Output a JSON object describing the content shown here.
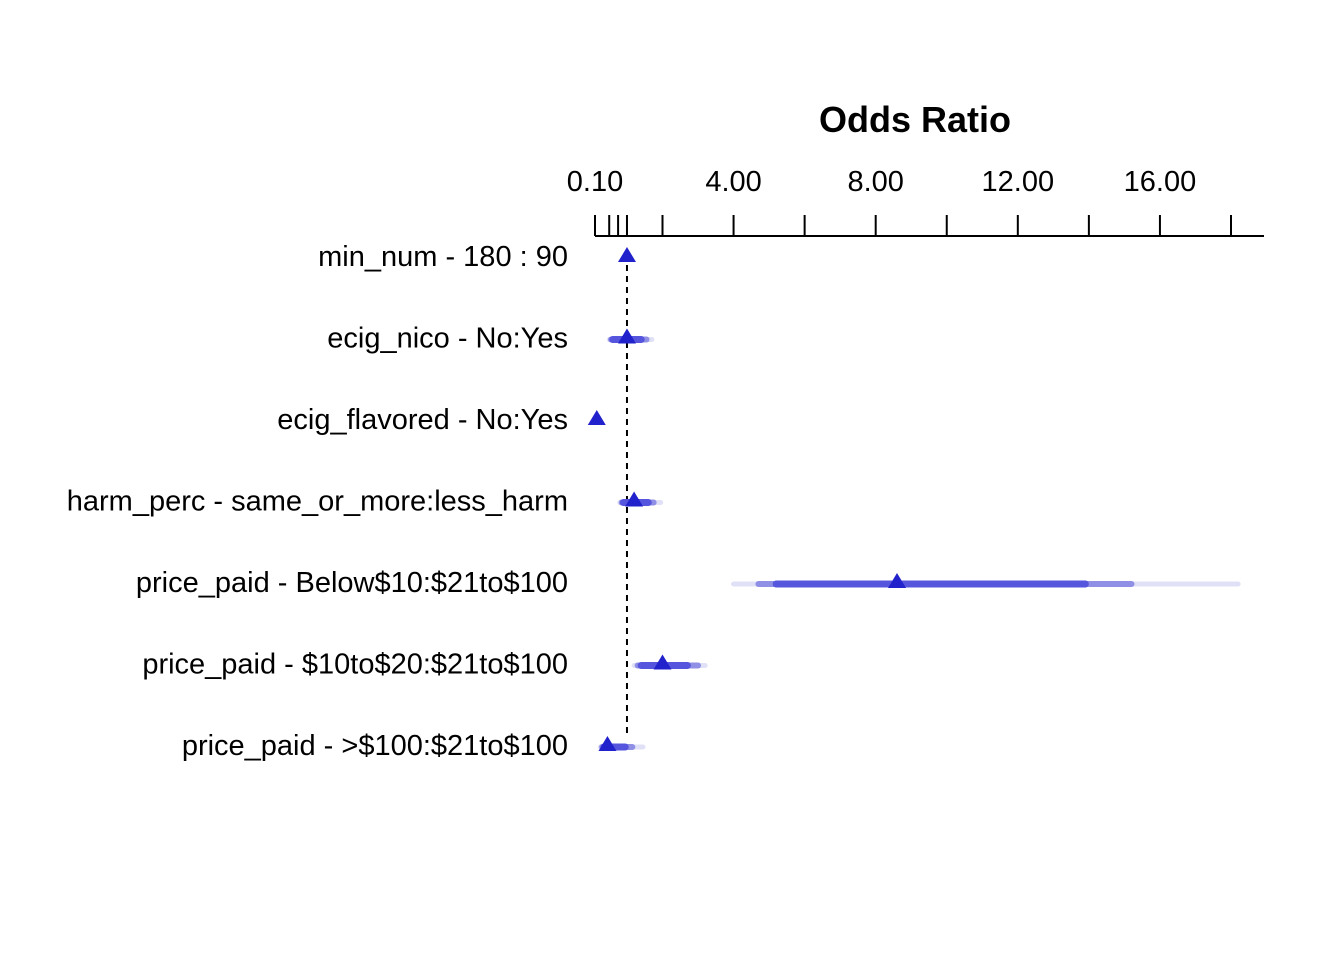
{
  "chart_data": {
    "type": "forest",
    "title": "Odds Ratio",
    "x_axis": {
      "range": [
        0.1,
        18.8
      ],
      "ticks": [
        0.1,
        1,
        2,
        4,
        6,
        8,
        10,
        12,
        14,
        16,
        18
      ],
      "tick_labels": [
        {
          "value": 0.1,
          "label": "0.10"
        },
        {
          "value": 4,
          "label": "4.00"
        },
        {
          "value": 8,
          "label": "8.00"
        },
        {
          "value": 12,
          "label": "12.00"
        },
        {
          "value": 16,
          "label": "16.00"
        }
      ],
      "minor_ticks": [
        0.5,
        0.75
      ],
      "reference_line": 1
    },
    "marker_color": "#2222cc",
    "ci_colors": {
      "inner": "#5555dd",
      "middle": "#8f8fe6",
      "outer": "#e0e0f7"
    },
    "rows": [
      {
        "label": "min_num - 180 : 90",
        "or": 1.0,
        "ci_inner": [
          1.0,
          1.0
        ],
        "ci_middle": [
          1.0,
          1.0
        ],
        "ci_outer": [
          1.0,
          1.0
        ]
      },
      {
        "label": "ecig_nico - No:Yes",
        "or": 1.0,
        "ci_inner": [
          0.6,
          1.4
        ],
        "ci_middle": [
          0.55,
          1.55
        ],
        "ci_outer": [
          0.5,
          1.7
        ]
      },
      {
        "label": "ecig_flavored - No:Yes",
        "or": 0.15,
        "ci_inner": [
          0.15,
          0.15
        ],
        "ci_middle": [
          0.15,
          0.15
        ],
        "ci_outer": [
          0.15,
          0.15
        ]
      },
      {
        "label": "harm_perc - same_or_more:less_harm",
        "or": 1.2,
        "ci_inner": [
          0.9,
          1.6
        ],
        "ci_middle": [
          0.85,
          1.75
        ],
        "ci_outer": [
          0.8,
          1.95
        ]
      },
      {
        "label": "price_paid - Below$10:$21to$100",
        "or": 8.6,
        "ci_inner": [
          5.2,
          13.9
        ],
        "ci_middle": [
          4.7,
          15.2
        ],
        "ci_outer": [
          4.0,
          18.2
        ]
      },
      {
        "label": "price_paid - $10to$20:$21to$100",
        "or": 2.0,
        "ci_inner": [
          1.4,
          2.7
        ],
        "ci_middle": [
          1.3,
          3.0
        ],
        "ci_outer": [
          1.2,
          3.2
        ]
      },
      {
        "label": "price_paid - >$100:$21to$100",
        "or": 0.45,
        "ci_inner": [
          0.35,
          0.95
        ],
        "ci_middle": [
          0.3,
          1.15
        ],
        "ci_outer": [
          0.25,
          1.45
        ]
      }
    ]
  }
}
